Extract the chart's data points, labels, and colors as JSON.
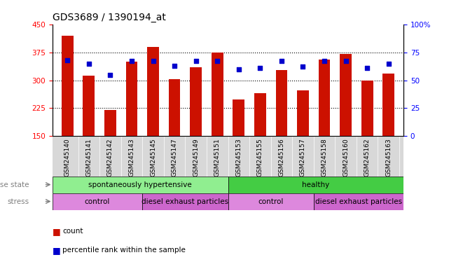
{
  "title": "GDS3689 / 1390194_at",
  "samples": [
    "GSM245140",
    "GSM245141",
    "GSM245142",
    "GSM245143",
    "GSM245145",
    "GSM245147",
    "GSM245149",
    "GSM245151",
    "GSM245153",
    "GSM245155",
    "GSM245156",
    "GSM245157",
    "GSM245158",
    "GSM245160",
    "GSM245162",
    "GSM245163"
  ],
  "count_values": [
    420,
    313,
    220,
    350,
    390,
    302,
    335,
    375,
    248,
    265,
    328,
    272,
    355,
    370,
    300,
    318
  ],
  "percentile_values": [
    68,
    65,
    55,
    67,
    67,
    63,
    67,
    67,
    60,
    61,
    67,
    62,
    67,
    67,
    61,
    65
  ],
  "ylim_left": [
    150,
    450
  ],
  "ylim_right": [
    0,
    100
  ],
  "yticks_left": [
    150,
    225,
    300,
    375,
    450
  ],
  "yticks_right": [
    0,
    25,
    50,
    75,
    100
  ],
  "bar_color": "#cc1100",
  "dot_color": "#0000cc",
  "background_color": "#ffffff",
  "tick_bg_color": "#d8d8d8",
  "disease_colors": {
    "spontaneously hypertensive": "#90ee90",
    "healthy": "#44cc44"
  },
  "stress_colors": {
    "control": "#dd88dd",
    "diesel": "#cc66cc"
  },
  "legend_count": "count",
  "legend_percentile": "percentile rank within the sample",
  "label_fontsize": 7.5,
  "tick_fontsize": 6.5,
  "title_fontsize": 10
}
